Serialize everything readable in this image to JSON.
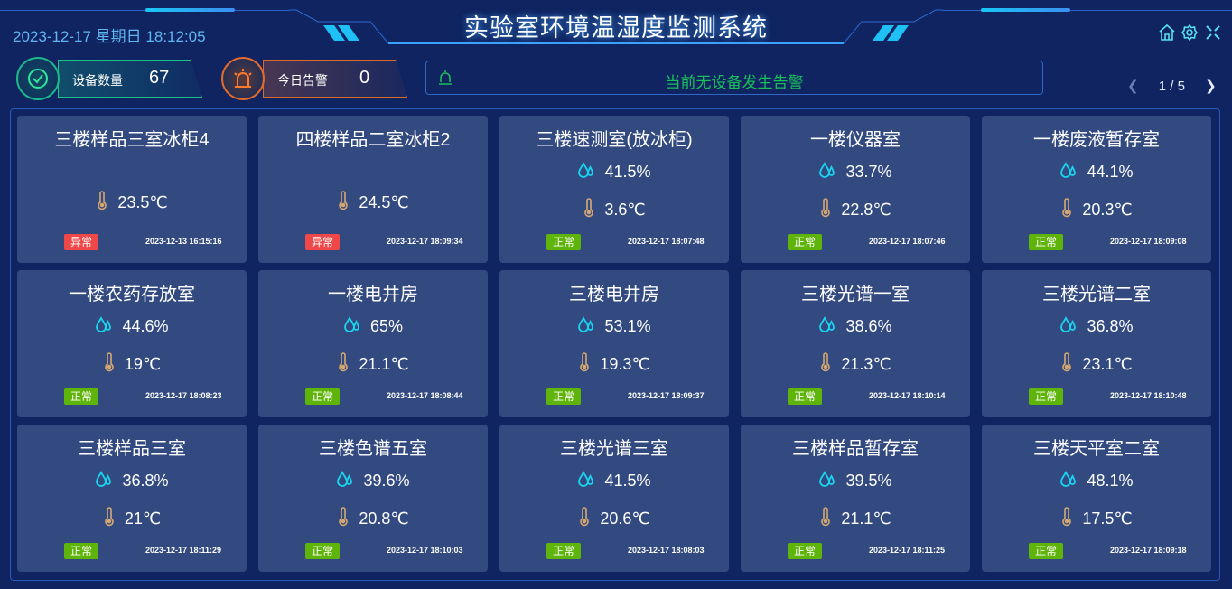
{
  "header": {
    "title": "实验室环境温湿度监测系统",
    "datetime": "2023-12-17 星期日 18:12:05",
    "icons": [
      "home-icon",
      "gear-icon",
      "fullscreen-icon"
    ]
  },
  "stats": {
    "device_label": "设备数量",
    "device_count": "67",
    "alarm_label": "今日告警",
    "alarm_count": "0"
  },
  "alert": {
    "message": "当前无设备发生告警",
    "icon": "alarm-light-icon"
  },
  "pager": {
    "text": "1 / 5"
  },
  "colors": {
    "normal": "#5fb40a",
    "abnormal": "#f04848",
    "humidity": "#19d5f0",
    "temperature": "#d7a870"
  },
  "devices": [
    {
      "name": "三楼样品三室冰柜4",
      "humidity": null,
      "temp": "23.5℃",
      "status": "异常",
      "time": "2023-12-13 16:15:16"
    },
    {
      "name": "四楼样品二室冰柜2",
      "humidity": null,
      "temp": "24.5℃",
      "status": "异常",
      "time": "2023-12-17 18:09:34"
    },
    {
      "name": "三楼速测室(放冰柜)",
      "humidity": "41.5%",
      "temp": "3.6℃",
      "status": "正常",
      "time": "2023-12-17 18:07:48"
    },
    {
      "name": "一楼仪器室",
      "humidity": "33.7%",
      "temp": "22.8℃",
      "status": "正常",
      "time": "2023-12-17 18:07:46"
    },
    {
      "name": "一楼废液暂存室",
      "humidity": "44.1%",
      "temp": "20.3℃",
      "status": "正常",
      "time": "2023-12-17 18:09:08"
    },
    {
      "name": "一楼农药存放室",
      "humidity": "44.6%",
      "temp": "19℃",
      "status": "正常",
      "time": "2023-12-17 18:08:23"
    },
    {
      "name": "一楼电井房",
      "humidity": "65%",
      "temp": "21.1℃",
      "status": "正常",
      "time": "2023-12-17 18:08:44"
    },
    {
      "name": "三楼电井房",
      "humidity": "53.1%",
      "temp": "19.3℃",
      "status": "正常",
      "time": "2023-12-17 18:09:37"
    },
    {
      "name": "三楼光谱一室",
      "humidity": "38.6%",
      "temp": "21.3℃",
      "status": "正常",
      "time": "2023-12-17 18:10:14"
    },
    {
      "name": "三楼光谱二室",
      "humidity": "36.8%",
      "temp": "23.1℃",
      "status": "正常",
      "time": "2023-12-17 18:10:48"
    },
    {
      "name": "三楼样品三室",
      "humidity": "36.8%",
      "temp": "21℃",
      "status": "正常",
      "time": "2023-12-17 18:11:29"
    },
    {
      "name": "三楼色谱五室",
      "humidity": "39.6%",
      "temp": "20.8℃",
      "status": "正常",
      "time": "2023-12-17 18:10:03"
    },
    {
      "name": "三楼光谱三室",
      "humidity": "41.5%",
      "temp": "20.6℃",
      "status": "正常",
      "time": "2023-12-17 18:08:03"
    },
    {
      "name": "三楼样品暂存室",
      "humidity": "39.5%",
      "temp": "21.1℃",
      "status": "正常",
      "time": "2023-12-17 18:11:25"
    },
    {
      "name": "三楼天平室二室",
      "humidity": "48.1%",
      "temp": "17.5℃",
      "status": "正常",
      "time": "2023-12-17 18:09:18"
    }
  ]
}
